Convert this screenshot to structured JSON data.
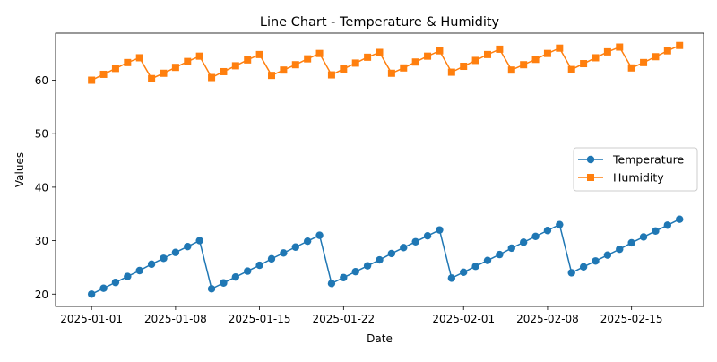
{
  "chart_data": {
    "type": "line",
    "title": "Line Chart - Temperature & Humidity",
    "xlabel": "Date",
    "ylabel": "Values",
    "x": [
      "2025-01-01",
      "2025-01-02",
      "2025-01-03",
      "2025-01-04",
      "2025-01-05",
      "2025-01-06",
      "2025-01-07",
      "2025-01-08",
      "2025-01-09",
      "2025-01-10",
      "2025-01-11",
      "2025-01-12",
      "2025-01-13",
      "2025-01-14",
      "2025-01-15",
      "2025-01-16",
      "2025-01-17",
      "2025-01-18",
      "2025-01-19",
      "2025-01-20",
      "2025-01-21",
      "2025-01-22",
      "2025-01-23",
      "2025-01-24",
      "2025-01-25",
      "2025-01-26",
      "2025-01-27",
      "2025-01-28",
      "2025-01-29",
      "2025-01-30",
      "2025-01-31",
      "2025-02-01",
      "2025-02-02",
      "2025-02-03",
      "2025-02-04",
      "2025-02-05",
      "2025-02-06",
      "2025-02-07",
      "2025-02-08",
      "2025-02-09",
      "2025-02-10",
      "2025-02-11",
      "2025-02-12",
      "2025-02-13",
      "2025-02-14",
      "2025-02-15",
      "2025-02-16",
      "2025-02-17",
      "2025-02-18",
      "2025-02-19"
    ],
    "series": [
      {
        "name": "Temperature",
        "color": "#1f77b4",
        "marker": "circle",
        "values": [
          20,
          21.1,
          22.2,
          23.3,
          24.4,
          25.6,
          26.7,
          27.8,
          28.9,
          30,
          21,
          22.1,
          23.2,
          24.3,
          25.4,
          26.6,
          27.7,
          28.8,
          29.9,
          31,
          22,
          23.1,
          24.2,
          25.3,
          26.4,
          27.6,
          28.7,
          29.8,
          30.9,
          32,
          23,
          24.1,
          25.2,
          26.3,
          27.4,
          28.6,
          29.7,
          30.8,
          31.9,
          33,
          24,
          25.1,
          26.2,
          27.3,
          28.4,
          29.6,
          30.7,
          31.8,
          32.9,
          34
        ]
      },
      {
        "name": "Humidity",
        "color": "#ff7f0e",
        "marker": "square",
        "values": [
          60,
          61.1,
          62.2,
          63.3,
          64.2,
          60.3,
          61.3,
          62.4,
          63.5,
          64.5,
          60.5,
          61.6,
          62.7,
          63.8,
          64.8,
          60.9,
          61.9,
          62.9,
          64,
          65,
          61,
          62.1,
          63.2,
          64.3,
          65.2,
          61.3,
          62.3,
          63.4,
          64.5,
          65.5,
          61.5,
          62.6,
          63.7,
          64.8,
          65.8,
          61.9,
          62.9,
          63.9,
          65,
          66,
          62,
          63.1,
          64.2,
          65.3,
          66.2,
          62.3,
          63.3,
          64.4,
          65.5,
          66.5
        ]
      }
    ],
    "x_ticks": [
      "2025-01-01",
      "2025-01-08",
      "2025-01-15",
      "2025-01-22",
      "2025-02-01",
      "2025-02-08",
      "2025-02-15"
    ],
    "y_ticks": [
      20,
      30,
      40,
      50,
      60
    ],
    "ylim": [
      17.7,
      68.8
    ],
    "xlim": [
      "2024-12-29",
      "2025-02-21"
    ],
    "grid": false,
    "legend_position": "center-right"
  }
}
